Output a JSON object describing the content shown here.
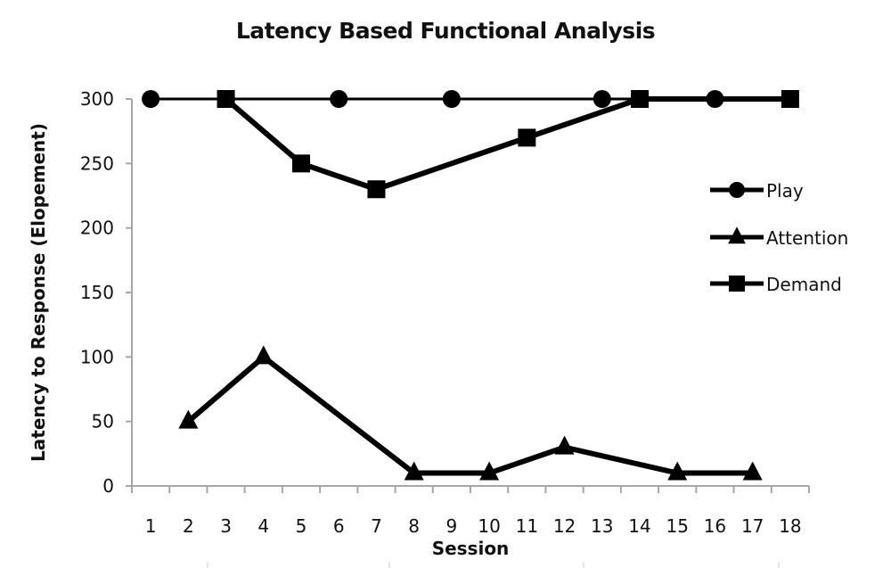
{
  "chart_data": {
    "type": "line",
    "title": "Latency Based Functional Analysis",
    "xlabel": "Session",
    "ylabel": "Latency to Response (Elopement)",
    "ylim": [
      0,
      300
    ],
    "yticks": [
      0,
      50,
      100,
      150,
      200,
      250,
      300
    ],
    "categories": [
      1,
      2,
      3,
      4,
      5,
      6,
      7,
      8,
      9,
      10,
      11,
      12,
      13,
      14,
      15,
      16,
      17,
      18
    ],
    "grid": false,
    "legend_position": "right",
    "series": [
      {
        "name": "Play",
        "marker": "circle",
        "points": [
          [
            1,
            300
          ],
          [
            6,
            300
          ],
          [
            9,
            300
          ],
          [
            13,
            300
          ],
          [
            16,
            300
          ]
        ]
      },
      {
        "name": "Attention",
        "marker": "triangle",
        "points": [
          [
            2,
            50
          ],
          [
            4,
            100
          ],
          [
            8,
            10
          ],
          [
            10,
            10
          ],
          [
            12,
            30
          ],
          [
            15,
            10
          ],
          [
            17,
            10
          ]
        ]
      },
      {
        "name": "Demand",
        "marker": "square",
        "points": [
          [
            3,
            300
          ],
          [
            5,
            250
          ],
          [
            7,
            230
          ],
          [
            11,
            270
          ],
          [
            14,
            300
          ],
          [
            18,
            300
          ]
        ]
      }
    ]
  },
  "colors": {
    "line": "#000000",
    "axis": "#a6a6a6",
    "text": "#111111"
  }
}
